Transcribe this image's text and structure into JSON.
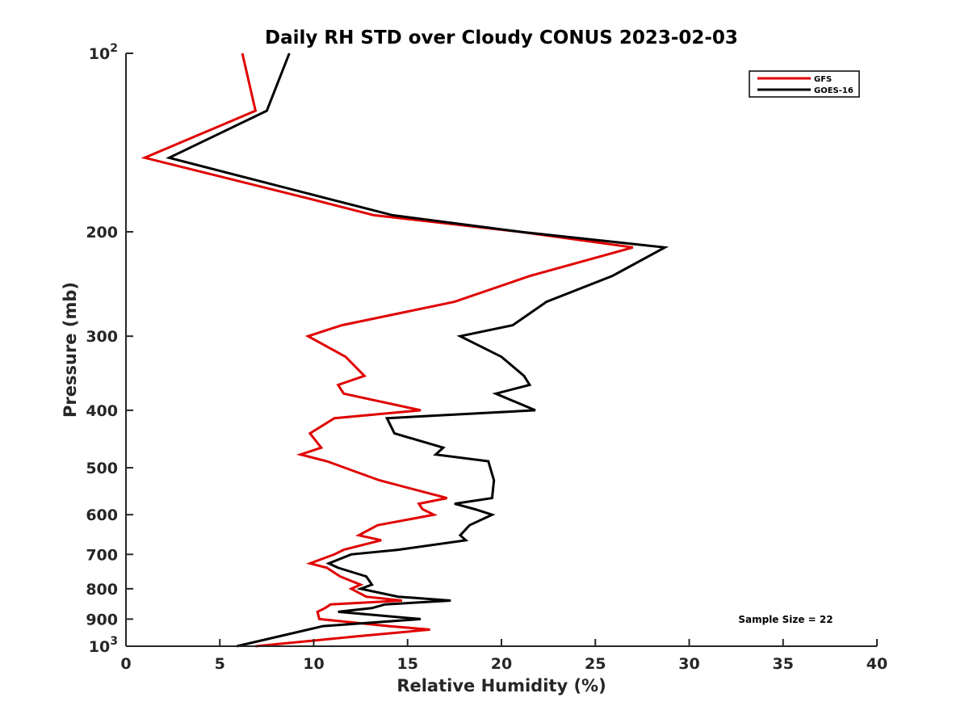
{
  "chart_data": {
    "type": "line",
    "title": "Daily RH STD over Cloudy CONUS 2023-02-03",
    "xlabel": "Relative Humidity (%)",
    "ylabel": "Pressure (mb)",
    "xlim": [
      0,
      40
    ],
    "ylim": [
      100,
      1000
    ],
    "y_scale": "log",
    "y_reversed": true,
    "x_ticks": [
      0,
      5,
      10,
      15,
      20,
      25,
      30,
      35,
      40
    ],
    "x_tick_labels": [
      "0",
      "5",
      "10",
      "15",
      "20",
      "25",
      "30",
      "35",
      "40"
    ],
    "y_ticks": [
      100,
      200,
      300,
      400,
      500,
      600,
      700,
      800,
      900,
      1000
    ],
    "y_tick_labels": [
      {
        "base": "10",
        "exp": "2"
      },
      {
        "base": "200",
        "exp": ""
      },
      {
        "base": "300",
        "exp": ""
      },
      {
        "base": "400",
        "exp": ""
      },
      {
        "base": "500",
        "exp": ""
      },
      {
        "base": "600",
        "exp": ""
      },
      {
        "base": "700",
        "exp": ""
      },
      {
        "base": "800",
        "exp": ""
      },
      {
        "base": "900",
        "exp": ""
      },
      {
        "base": "10",
        "exp": "3"
      }
    ],
    "grid": false,
    "legend_position": "top-right",
    "annotation": "Sample Size = 22",
    "series": [
      {
        "name": "GFS",
        "color": "#e00000",
        "points": [
          [
            6.2,
            100
          ],
          [
            6.9,
            125
          ],
          [
            1.0,
            150
          ],
          [
            9.5,
            175
          ],
          [
            13.2,
            187.5
          ],
          [
            21.0,
            200
          ],
          [
            27.0,
            212.5
          ],
          [
            21.5,
            237.5
          ],
          [
            17.5,
            262.5
          ],
          [
            11.5,
            287.5
          ],
          [
            9.7,
            300
          ],
          [
            11.7,
            325
          ],
          [
            12.7,
            350
          ],
          [
            11.3,
            362.5
          ],
          [
            11.6,
            375
          ],
          [
            15.7,
            400
          ],
          [
            11.1,
            412.5
          ],
          [
            9.8,
            437.5
          ],
          [
            10.4,
            462.5
          ],
          [
            9.3,
            475
          ],
          [
            10.7,
            487.5
          ],
          [
            13.5,
            525
          ],
          [
            17.1,
            562.5
          ],
          [
            15.6,
            575
          ],
          [
            15.8,
            587.5
          ],
          [
            16.4,
            600
          ],
          [
            13.4,
            625
          ],
          [
            12.4,
            650
          ],
          [
            13.6,
            662.5
          ],
          [
            11.6,
            687.5
          ],
          [
            11.1,
            700
          ],
          [
            9.8,
            725
          ],
          [
            10.7,
            737.5
          ],
          [
            11.4,
            762.5
          ],
          [
            12.5,
            787.5
          ],
          [
            12.0,
            800
          ],
          [
            12.8,
            825
          ],
          [
            14.7,
            837.5
          ],
          [
            10.9,
            850
          ],
          [
            10.6,
            862.5
          ],
          [
            10.2,
            875
          ],
          [
            10.3,
            900
          ],
          [
            14.0,
            925
          ],
          [
            16.2,
            937.5
          ],
          [
            12.3,
            962.5
          ],
          [
            6.9,
            1000
          ]
        ]
      },
      {
        "name": "GOES-16",
        "color": "#000000",
        "points": [
          [
            8.7,
            100
          ],
          [
            7.5,
            125
          ],
          [
            2.3,
            150
          ],
          [
            10.5,
            175
          ],
          [
            14.2,
            187.5
          ],
          [
            21.0,
            200
          ],
          [
            28.7,
            212.5
          ],
          [
            25.9,
            237.5
          ],
          [
            22.4,
            262.5
          ],
          [
            20.6,
            287.5
          ],
          [
            17.8,
            300
          ],
          [
            20.0,
            325
          ],
          [
            21.2,
            350
          ],
          [
            21.5,
            362.5
          ],
          [
            19.7,
            375
          ],
          [
            21.8,
            400
          ],
          [
            13.9,
            412.5
          ],
          [
            14.3,
            437.5
          ],
          [
            16.9,
            462.5
          ],
          [
            16.5,
            475
          ],
          [
            19.3,
            487.5
          ],
          [
            19.6,
            525
          ],
          [
            19.5,
            562.5
          ],
          [
            17.5,
            575
          ],
          [
            18.6,
            587.5
          ],
          [
            19.5,
            600
          ],
          [
            18.3,
            625
          ],
          [
            17.8,
            650
          ],
          [
            18.1,
            662.5
          ],
          [
            14.5,
            687.5
          ],
          [
            12.0,
            700
          ],
          [
            10.8,
            725
          ],
          [
            11.3,
            737.5
          ],
          [
            12.8,
            762.5
          ],
          [
            13.1,
            787.5
          ],
          [
            12.5,
            800
          ],
          [
            14.5,
            825
          ],
          [
            17.3,
            837.5
          ],
          [
            13.8,
            850
          ],
          [
            13.1,
            862.5
          ],
          [
            11.3,
            875
          ],
          [
            15.7,
            900
          ],
          [
            10.5,
            925
          ],
          [
            5.9,
            1000
          ]
        ]
      }
    ]
  }
}
